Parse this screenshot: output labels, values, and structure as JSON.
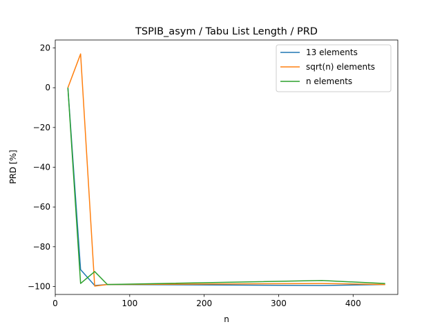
{
  "chart_data": {
    "type": "line",
    "title": "TSPIB_asym / Tabu List Length / PRD",
    "xlabel": "n",
    "ylabel": "PRD [%]",
    "xlim": [
      0,
      460
    ],
    "ylim": [
      -104,
      24
    ],
    "x_ticks": [
      0,
      100,
      200,
      300,
      400
    ],
    "y_ticks": [
      20,
      0,
      -20,
      -40,
      -60,
      -80,
      -100
    ],
    "x_tick_labels": [
      "0",
      "100",
      "200",
      "300",
      "400"
    ],
    "y_tick_labels": [
      "20",
      "0",
      "−20",
      "−40",
      "−60",
      "−80",
      "−100"
    ],
    "legend_position": "top-right",
    "grid": false,
    "series": [
      {
        "name": "13 elements",
        "color": "#1f77b4",
        "x": [
          17,
          34,
          53,
          70,
          358,
          443
        ],
        "y": [
          0,
          -91.5,
          -99.5,
          -99.0,
          -99.5,
          -99.0
        ]
      },
      {
        "name": "sqrt(n) elements",
        "color": "#ff7f0e",
        "x": [
          17,
          34,
          53,
          70,
          358,
          443
        ],
        "y": [
          0,
          17,
          -99.8,
          -99.0,
          -98.5,
          -99.0
        ]
      },
      {
        "name": "n elements",
        "color": "#2ca02c",
        "x": [
          17,
          34,
          53,
          70,
          358,
          443
        ],
        "y": [
          0,
          -98.5,
          -92.5,
          -99.0,
          -97.0,
          -98.5
        ]
      }
    ]
  }
}
